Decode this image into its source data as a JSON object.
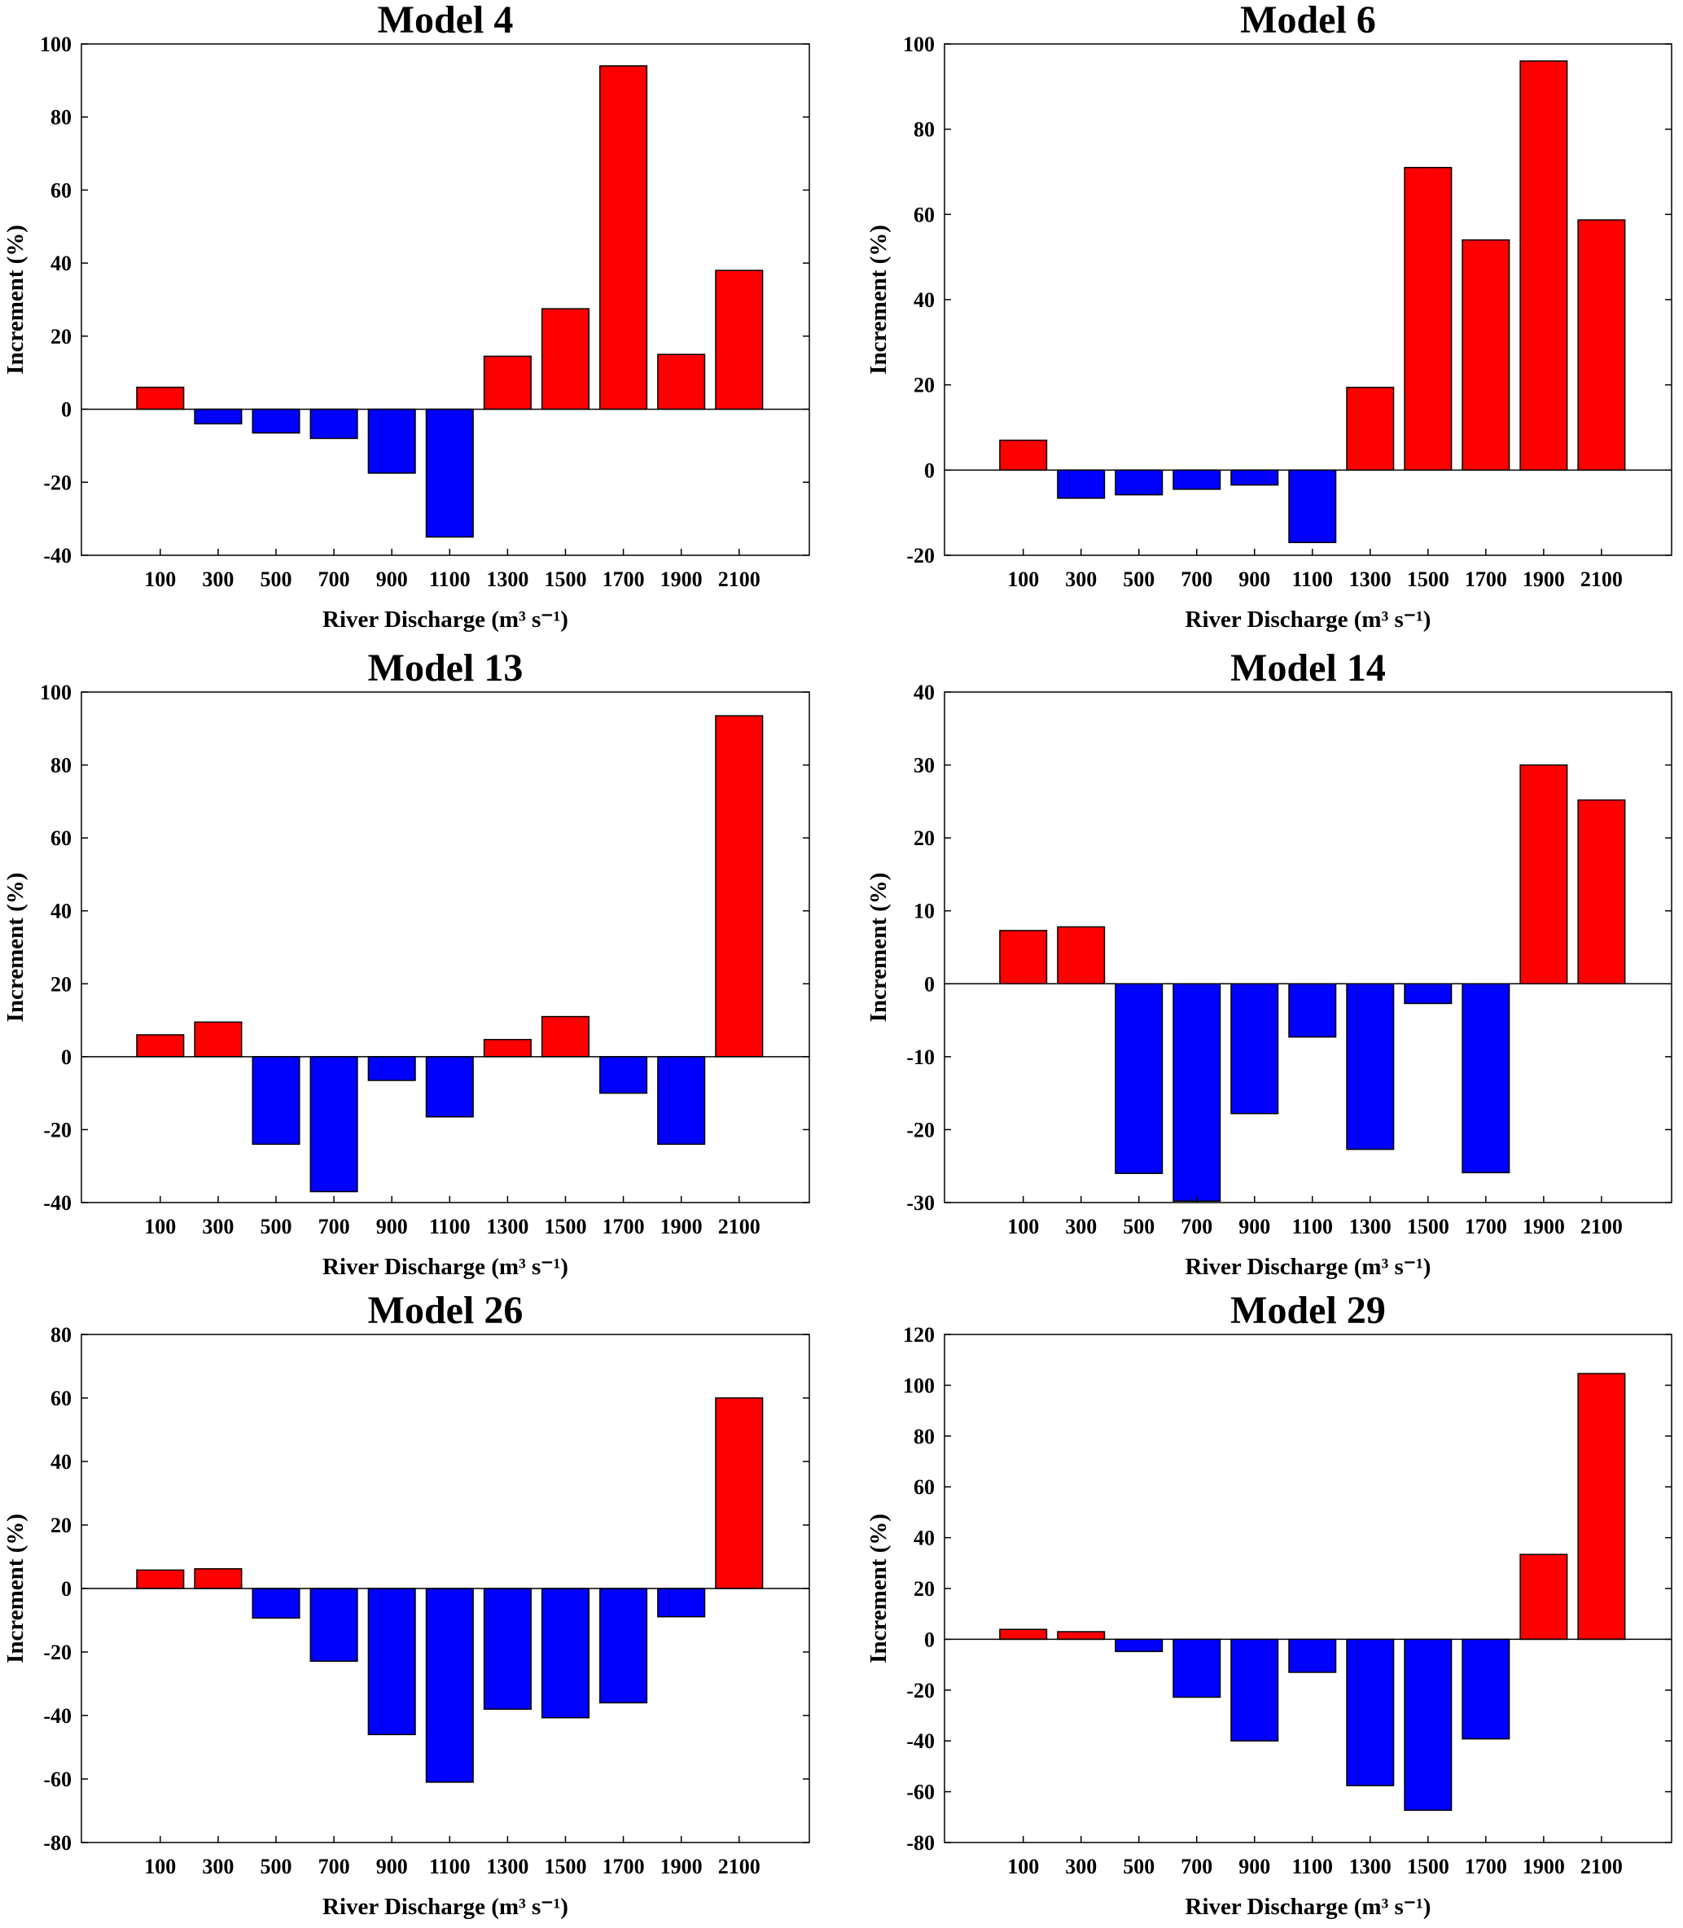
{
  "colors": {
    "positive": "#ff0000",
    "negative": "#0000ff",
    "axis": "#000000"
  },
  "chart_data": [
    {
      "type": "bar",
      "title": "Model 4",
      "xlabel": "River Discharge (m³ s⁻¹)",
      "ylabel": "Increment (%)",
      "categories": [
        "100",
        "300",
        "500",
        "700",
        "900",
        "1100",
        "1300",
        "1500",
        "1700",
        "1900",
        "2100"
      ],
      "values": [
        6,
        -4,
        -6.5,
        -8,
        -17.5,
        -35,
        14.5,
        27.5,
        94,
        15,
        38
      ],
      "ylim": [
        -40,
        100
      ],
      "yticks": [
        -40,
        -20,
        0,
        20,
        40,
        60,
        80,
        100
      ]
    },
    {
      "type": "bar",
      "title": "Model 6",
      "xlabel": "River Discharge (m³ s⁻¹)",
      "ylabel": "Increment (%)",
      "categories": [
        "100",
        "300",
        "500",
        "700",
        "900",
        "1100",
        "1300",
        "1500",
        "1700",
        "1900",
        "2100"
      ],
      "values": [
        7,
        -6.6,
        -5.8,
        -4.5,
        -3.5,
        -17,
        19.4,
        71,
        54,
        96,
        58.7
      ],
      "ylim": [
        -20,
        100
      ],
      "yticks": [
        -20,
        0,
        20,
        40,
        60,
        80,
        100
      ]
    },
    {
      "type": "bar",
      "title": "Model 13",
      "xlabel": "River Discharge (m³ s⁻¹)",
      "ylabel": "Increment (%)",
      "categories": [
        "100",
        "300",
        "500",
        "700",
        "900",
        "1100",
        "1300",
        "1500",
        "1700",
        "1900",
        "2100"
      ],
      "values": [
        6,
        9.5,
        -24,
        -37,
        -6.5,
        -16.5,
        4.7,
        11,
        -10,
        -24,
        93.5
      ],
      "ylim": [
        -40,
        100
      ],
      "yticks": [
        -40,
        -20,
        0,
        20,
        40,
        60,
        80,
        100
      ]
    },
    {
      "type": "bar",
      "title": "Model 14",
      "xlabel": "River Discharge (m³ s⁻¹)",
      "ylabel": "Increment (%)",
      "categories": [
        "100",
        "300",
        "500",
        "700",
        "900",
        "1100",
        "1300",
        "1500",
        "1700",
        "1900",
        "2100"
      ],
      "values": [
        7.3,
        7.8,
        -26,
        -29.8,
        -17.8,
        -7.3,
        -22.7,
        -2.7,
        -25.9,
        30,
        25.2
      ],
      "ylim": [
        -30,
        40
      ],
      "yticks": [
        -30,
        -20,
        -10,
        0,
        10,
        20,
        30,
        40
      ]
    },
    {
      "type": "bar",
      "title": "Model 26",
      "xlabel": "River Discharge (m³ s⁻¹)",
      "ylabel": "Increment (%)",
      "categories": [
        "100",
        "300",
        "500",
        "700",
        "900",
        "1100",
        "1300",
        "1500",
        "1700",
        "1900",
        "2100"
      ],
      "values": [
        5.8,
        6.2,
        -9.3,
        -22.9,
        -46,
        -61,
        -38,
        -40.7,
        -36,
        -8.9,
        60
      ],
      "ylim": [
        -80,
        80
      ],
      "yticks": [
        -80,
        -60,
        -40,
        -20,
        0,
        20,
        40,
        60,
        80
      ]
    },
    {
      "type": "bar",
      "title": "Model 29",
      "xlabel": "River Discharge (m³ s⁻¹)",
      "ylabel": "Increment (%)",
      "categories": [
        "100",
        "300",
        "500",
        "700",
        "900",
        "1100",
        "1300",
        "1500",
        "1700",
        "1900",
        "2100"
      ],
      "values": [
        3.9,
        3,
        -4.8,
        -22.8,
        -40,
        -13,
        -57.6,
        -67.3,
        -39.2,
        33.4,
        104.6
      ],
      "ylim": [
        -80,
        120
      ],
      "yticks": [
        -80,
        -60,
        -40,
        -20,
        0,
        20,
        40,
        60,
        80,
        100,
        120
      ]
    }
  ]
}
